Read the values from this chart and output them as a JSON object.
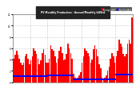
{
  "title": "PV Monthly Production - Annual/Monthly kWh/d",
  "bar_color": "#ff0000",
  "avg_color": "#0000ff",
  "background": "#ffffff",
  "plot_bg": "#ffffff",
  "grid_color": "#999999",
  "title_bg": "#222222",
  "title_fg": "#ffffff",
  "values": [
    4.2,
    4.8,
    5.5,
    4.8,
    4.2,
    3.5,
    3.0,
    3.5,
    4.5,
    5.0,
    4.2,
    3.2,
    3.8,
    4.5,
    6.0,
    5.5,
    5.0,
    4.2,
    3.2,
    3.8,
    5.2,
    5.8,
    4.8,
    3.5,
    3.5,
    4.2,
    6.5,
    5.8,
    5.5,
    4.5,
    3.5,
    4.2,
    5.5,
    6.2,
    5.2,
    3.8,
    4.0,
    5.0,
    6.8,
    6.0,
    5.2,
    4.2,
    1.5,
    0.8,
    0.6,
    0.8,
    1.2,
    1.8,
    3.5,
    4.5,
    6.0,
    5.5,
    5.2,
    4.5,
    3.5,
    4.0,
    5.8,
    6.5,
    5.8,
    4.5,
    3.2,
    2.5,
    0.8,
    0.5,
    0.8,
    1.2,
    2.0,
    2.8,
    4.2,
    5.2,
    4.5,
    3.5,
    4.5,
    5.5,
    7.5,
    6.8,
    6.2,
    5.0,
    4.5,
    5.0,
    6.8,
    7.5,
    6.8,
    11.5
  ],
  "avg_values": [
    1.05,
    1.05,
    1.05,
    1.05,
    1.05,
    1.05,
    1.05,
    1.05,
    1.05,
    1.05,
    1.05,
    1.05,
    1.05,
    1.05,
    1.05,
    1.05,
    1.05,
    1.05,
    1.05,
    1.05,
    1.05,
    1.05,
    1.05,
    1.05,
    1.15,
    1.15,
    1.15,
    1.15,
    1.15,
    1.15,
    1.15,
    1.15,
    1.15,
    1.15,
    1.15,
    1.15,
    1.15,
    1.15,
    1.15,
    1.15,
    1.15,
    1.15,
    0.45,
    0.45,
    0.45,
    0.45,
    0.45,
    0.45,
    0.45,
    0.45,
    0.45,
    0.45,
    0.45,
    0.45,
    0.45,
    0.45,
    0.45,
    0.45,
    0.45,
    0.45,
    0.45,
    0.45,
    0.45,
    0.45,
    0.45,
    0.45,
    0.45,
    0.45,
    0.45,
    0.45,
    0.45,
    0.45,
    1.3,
    1.3,
    1.3,
    1.3,
    1.3,
    1.3,
    1.3,
    1.3,
    1.3,
    1.3,
    1.3,
    1.3
  ],
  "ylim": [
    0,
    12
  ],
  "yticks": [
    0,
    2,
    4,
    6,
    8,
    10,
    12
  ],
  "ytick_labels": [
    "0",
    "2",
    "4",
    "6",
    "8",
    "10",
    "12"
  ],
  "n_bars": 84,
  "legend_labels": [
    "Energy kWh",
    "Running Avg"
  ],
  "legend_colors": [
    "#ff0000",
    "#0000ff"
  ]
}
